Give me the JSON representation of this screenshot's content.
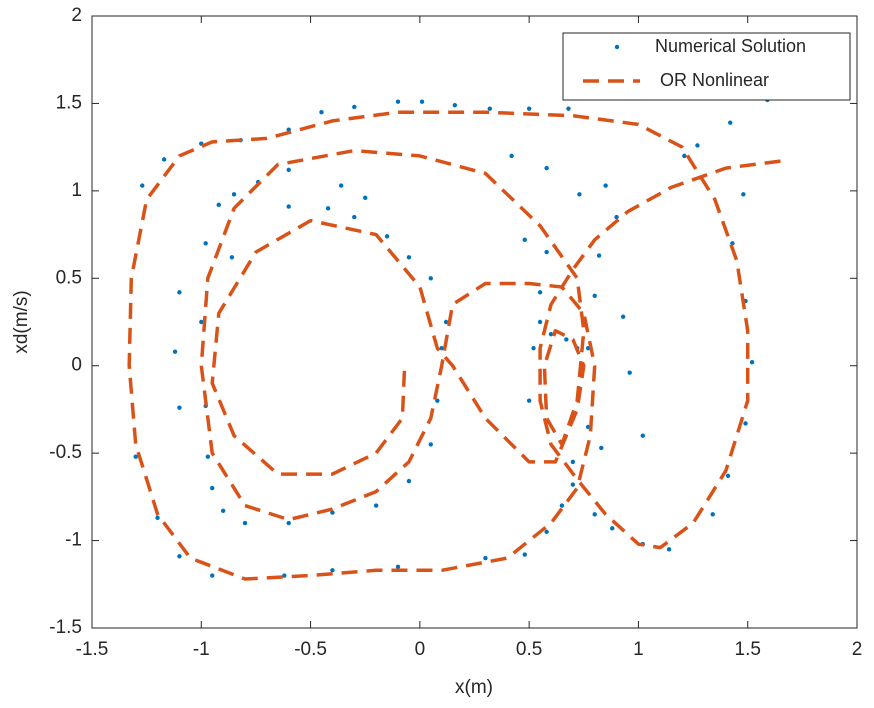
{
  "chart_data": {
    "type": "line",
    "xlabel": "x(m)",
    "ylabel": "xd(m/s)",
    "xlim": [
      -1.5,
      2
    ],
    "ylim": [
      -1.5,
      2
    ],
    "xticks": [
      -1.5,
      -1,
      -0.5,
      0,
      0.5,
      1,
      1.5,
      2
    ],
    "yticks": [
      -1.5,
      -1,
      -0.5,
      0,
      0.5,
      1,
      1.5,
      2
    ],
    "grid": false,
    "legend": "upper right",
    "series": [
      {
        "name": "Numerical Solution",
        "color": "#0072bd",
        "style": "dots",
        "x": [
          1.59,
          1.42,
          1.27,
          1.21,
          1.48,
          1.43,
          1.49,
          1.52,
          1.49,
          1.41,
          1.34,
          1.14,
          1.02,
          0.88,
          0.8,
          -1.0,
          -0.82,
          -0.6,
          -0.45,
          -0.3,
          -0.1,
          0.01,
          0.16,
          0.32,
          0.5,
          0.68,
          -1.17,
          -1.27,
          -1.1,
          -1.12,
          -1.1,
          -1.3,
          -1.2,
          -1.1,
          -0.95,
          -0.62,
          -0.4,
          -0.1,
          0.3,
          0.48,
          0.58,
          0.65,
          0.7,
          -0.98,
          -0.92,
          -0.85,
          -0.74,
          -0.6,
          -0.36,
          -0.25,
          -0.42,
          -0.6,
          -0.86,
          -1.0,
          -0.98,
          -0.97,
          -0.95,
          -0.9,
          -0.8,
          -0.6,
          -0.4,
          -0.2,
          -0.05,
          0.05,
          0.08,
          0.1,
          0.12,
          0.05,
          -0.05,
          -0.15,
          -0.3,
          0.5,
          0.52,
          0.55,
          0.6,
          0.67,
          0.72,
          0.77,
          0.8,
          0.82,
          0.77,
          0.7,
          0.85,
          0.9,
          0.73,
          0.58,
          0.58,
          0.42,
          0.55,
          0.48,
          0.83,
          0.93,
          0.96,
          1.02
        ],
        "values": [
          1.52,
          1.39,
          1.26,
          1.2,
          0.98,
          0.7,
          0.37,
          0.02,
          -0.33,
          -0.63,
          -0.85,
          -1.05,
          -1.02,
          -0.93,
          -0.85,
          1.27,
          1.29,
          1.35,
          1.45,
          1.48,
          1.51,
          1.51,
          1.49,
          1.47,
          1.47,
          1.47,
          1.18,
          1.03,
          0.42,
          0.08,
          -0.24,
          -0.52,
          -0.87,
          -1.09,
          -1.2,
          -1.2,
          -1.17,
          -1.15,
          -1.1,
          -1.08,
          -0.95,
          -0.8,
          -0.68,
          0.7,
          0.92,
          0.98,
          1.05,
          1.12,
          1.03,
          0.96,
          0.9,
          0.91,
          0.62,
          0.25,
          -0.23,
          -0.52,
          -0.7,
          -0.83,
          -0.9,
          -0.9,
          -0.84,
          -0.8,
          -0.66,
          -0.45,
          -0.2,
          0.1,
          0.25,
          0.5,
          0.62,
          0.74,
          0.85,
          -0.2,
          0.1,
          0.25,
          0.18,
          0.15,
          0.1,
          0.1,
          0.4,
          0.63,
          -0.35,
          -0.55,
          1.03,
          0.85,
          0.98,
          0.65,
          1.13,
          1.2,
          0.42,
          0.72,
          -0.47,
          0.28,
          -0.04,
          -0.4
        ]
      },
      {
        "name": " OR Nonlinear",
        "color": "#d95319",
        "style": "dashed",
        "x": [
          1.65,
          1.4,
          1.15,
          0.95,
          0.8,
          0.7,
          0.6,
          0.55,
          0.55,
          0.6,
          0.72,
          0.85,
          1.0,
          1.1,
          1.25,
          1.4,
          1.5,
          1.5,
          1.45,
          1.35,
          1.2,
          1.0,
          0.7,
          0.3,
          -0.1,
          -0.4,
          -0.7,
          -0.95,
          -1.1,
          -1.25,
          -1.32,
          -1.33,
          -1.3,
          -1.2,
          -1.05,
          -0.8,
          -0.5,
          -0.2,
          0.1,
          0.4,
          0.6,
          0.72,
          0.78,
          0.8,
          0.75,
          0.65,
          0.5,
          0.3,
          0.15,
          0.1,
          0.05,
          -0.05,
          -0.2,
          -0.4,
          -0.6,
          -0.8,
          -0.95,
          -1.0,
          -0.97,
          -0.85,
          -0.65,
          -0.3,
          0.0,
          0.3,
          0.55,
          0.72,
          0.75,
          0.72,
          0.65,
          0.58,
          0.57,
          0.62,
          0.7,
          0.75,
          0.72,
          0.62,
          0.5,
          0.3,
          0.15,
          0.08,
          0.0,
          -0.2,
          -0.5,
          -0.75,
          -0.92,
          -0.95,
          -0.85,
          -0.65,
          -0.4,
          -0.2,
          -0.08,
          -0.07
        ],
        "values": [
          1.17,
          1.13,
          1.02,
          0.88,
          0.72,
          0.55,
          0.35,
          0.1,
          -0.2,
          -0.45,
          -0.65,
          -0.85,
          -1.02,
          -1.04,
          -0.9,
          -0.6,
          -0.2,
          0.2,
          0.6,
          0.95,
          1.25,
          1.38,
          1.43,
          1.45,
          1.45,
          1.4,
          1.3,
          1.28,
          1.2,
          0.95,
          0.5,
          0.0,
          -0.45,
          -0.85,
          -1.1,
          -1.22,
          -1.2,
          -1.17,
          -1.17,
          -1.1,
          -0.9,
          -0.7,
          -0.4,
          0.0,
          0.3,
          0.45,
          0.47,
          0.47,
          0.35,
          0.0,
          -0.3,
          -0.55,
          -0.72,
          -0.82,
          -0.88,
          -0.8,
          -0.5,
          0.0,
          0.5,
          0.9,
          1.15,
          1.23,
          1.2,
          1.1,
          0.8,
          0.5,
          0.2,
          -0.2,
          -0.45,
          -0.3,
          0.0,
          0.2,
          0.15,
          0.0,
          -0.25,
          -0.55,
          -0.55,
          -0.3,
          0.0,
          0.1,
          0.45,
          0.75,
          0.83,
          0.65,
          0.3,
          -0.1,
          -0.4,
          -0.62,
          -0.62,
          -0.5,
          -0.3,
          0.0
        ]
      }
    ]
  }
}
